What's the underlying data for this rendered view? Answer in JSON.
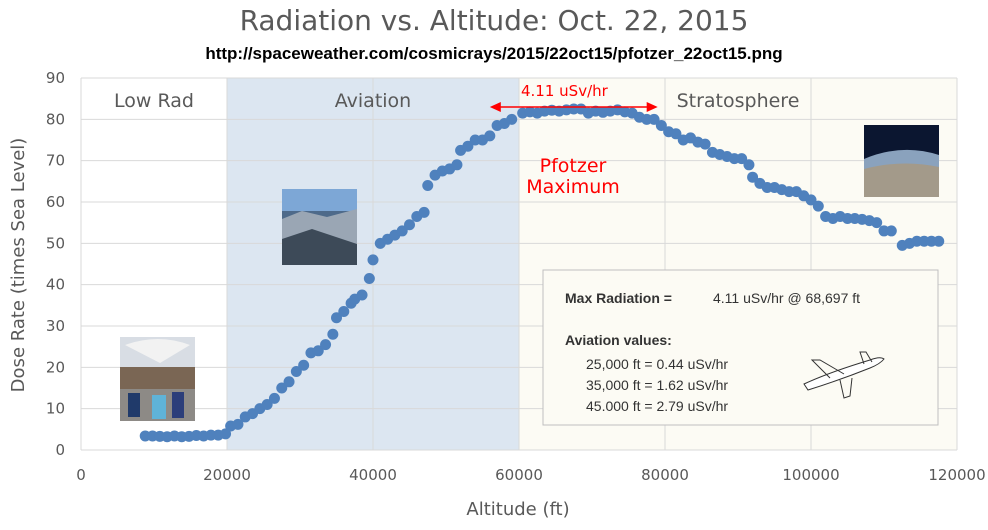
{
  "title": "Radiation vs. Altitude: Oct. 22, 2015",
  "subtitle": "http://spaceweather.com/cosmicrays/2015/22oct15/pfotzer_22oct15.png",
  "regions": [
    {
      "label": "Low Rad",
      "from": 0,
      "to": 20000,
      "color": "#ffffff"
    },
    {
      "label": "Aviation",
      "from": 20000,
      "to": 60000,
      "color": "#dce6f1"
    },
    {
      "label": "Stratosphere",
      "from": 60000,
      "to": 120000,
      "color": "#fcfbf4"
    }
  ],
  "annotations": {
    "peak_label": "4.11 uSv/hr",
    "pfotzer_line1": "Pfotzer",
    "pfotzer_line2": "Maximum",
    "arrow_from": 56000,
    "arrow_to": 79000,
    "arrow_y": 75
  },
  "info_box": {
    "max_label": "Max Radiation =",
    "max_value": "4.11 uSv/hr @ 68,697 ft",
    "aviation_heading": "Aviation values:",
    "lines": [
      "25,000 ft = 0.44 uSv/hr",
      "35,000 ft = 1.62 uSv/hr",
      "45.000 ft = 2.79 uSv/hr"
    ]
  },
  "photos": [
    "balloon-launch-photo",
    "aviation-altitude-photo",
    "stratosphere-photo",
    "airplane-sketch"
  ],
  "colors": {
    "points": "#4f81bd",
    "grid": "#d9d9d9",
    "annotation": "#ff0000"
  },
  "chart_data": {
    "type": "scatter",
    "xlabel": "Altitude (ft)",
    "ylabel": "Dose Rate (times Sea Level)",
    "xlim": [
      0,
      120000
    ],
    "ylim": [
      0,
      90
    ],
    "xticks": [
      0,
      20000,
      40000,
      60000,
      80000,
      100000,
      120000
    ],
    "yticks": [
      0,
      10,
      20,
      30,
      40,
      50,
      60,
      70,
      80,
      90
    ],
    "grid": true,
    "points": [
      [
        8800,
        3.4
      ],
      [
        9800,
        3.4
      ],
      [
        10800,
        3.3
      ],
      [
        11800,
        3.2
      ],
      [
        12800,
        3.4
      ],
      [
        13800,
        3.2
      ],
      [
        14800,
        3.3
      ],
      [
        15800,
        3.5
      ],
      [
        16800,
        3.4
      ],
      [
        17800,
        3.6
      ],
      [
        18800,
        3.6
      ],
      [
        19800,
        3.9
      ],
      [
        20500,
        5.8
      ],
      [
        21500,
        6.2
      ],
      [
        22500,
        8.0
      ],
      [
        23500,
        8.8
      ],
      [
        24500,
        10.0
      ],
      [
        25500,
        11.0
      ],
      [
        26500,
        12.5
      ],
      [
        27500,
        15.0
      ],
      [
        28500,
        16.5
      ],
      [
        29500,
        19.0
      ],
      [
        30500,
        20.5
      ],
      [
        31500,
        23.5
      ],
      [
        32500,
        24.0
      ],
      [
        33500,
        25.5
      ],
      [
        34500,
        28.0
      ],
      [
        35000,
        32.0
      ],
      [
        36000,
        33.5
      ],
      [
        37000,
        35.5
      ],
      [
        37500,
        36.5
      ],
      [
        38500,
        37.5
      ],
      [
        39500,
        41.5
      ],
      [
        40000,
        46.0
      ],
      [
        41000,
        50.0
      ],
      [
        42000,
        51.0
      ],
      [
        43000,
        52.0
      ],
      [
        44000,
        53.0
      ],
      [
        45000,
        54.5
      ],
      [
        46000,
        56.5
      ],
      [
        47000,
        57.5
      ],
      [
        47500,
        64.0
      ],
      [
        48500,
        66.5
      ],
      [
        49500,
        67.5
      ],
      [
        50500,
        68.0
      ],
      [
        51500,
        69.0
      ],
      [
        52000,
        72.5
      ],
      [
        53000,
        73.5
      ],
      [
        54000,
        75.0
      ],
      [
        55000,
        75.0
      ],
      [
        56000,
        76.0
      ],
      [
        57000,
        78.5
      ],
      [
        58000,
        79.0
      ],
      [
        59000,
        80.0
      ],
      [
        60500,
        81.5
      ],
      [
        61500,
        81.8
      ],
      [
        62500,
        81.5
      ],
      [
        63500,
        82.0
      ],
      [
        64500,
        82.2
      ],
      [
        65500,
        82.0
      ],
      [
        66500,
        82.3
      ],
      [
        67500,
        82.5
      ],
      [
        68500,
        82.5
      ],
      [
        69500,
        81.5
      ],
      [
        70500,
        82.0
      ],
      [
        71500,
        81.7
      ],
      [
        72500,
        82.0
      ],
      [
        73500,
        82.3
      ],
      [
        74500,
        81.8
      ],
      [
        75500,
        81.5
      ],
      [
        76500,
        80.5
      ],
      [
        77500,
        80.0
      ],
      [
        78500,
        80.0
      ],
      [
        79500,
        78.5
      ],
      [
        80500,
        77.0
      ],
      [
        81500,
        76.5
      ],
      [
        82500,
        75.0
      ],
      [
        83500,
        75.5
      ],
      [
        84500,
        74.5
      ],
      [
        85500,
        74.0
      ],
      [
        86500,
        72.0
      ],
      [
        87500,
        71.5
      ],
      [
        88500,
        71.0
      ],
      [
        89500,
        70.5
      ],
      [
        90500,
        70.5
      ],
      [
        91500,
        69.0
      ],
      [
        92000,
        66.0
      ],
      [
        93000,
        64.5
      ],
      [
        94000,
        63.5
      ],
      [
        95000,
        63.5
      ],
      [
        96000,
        63.0
      ],
      [
        97000,
        62.5
      ],
      [
        98000,
        62.5
      ],
      [
        99000,
        61.5
      ],
      [
        100000,
        60.5
      ],
      [
        101000,
        59.0
      ],
      [
        102000,
        56.5
      ],
      [
        103000,
        56.0
      ],
      [
        104000,
        56.5
      ],
      [
        105000,
        56.0
      ],
      [
        106000,
        56.0
      ],
      [
        107000,
        55.8
      ],
      [
        108000,
        55.5
      ],
      [
        109000,
        55.0
      ],
      [
        110000,
        53.0
      ],
      [
        111000,
        53.0
      ],
      [
        112500,
        49.5
      ],
      [
        113500,
        50.0
      ],
      [
        114500,
        50.5
      ],
      [
        115500,
        50.5
      ],
      [
        116500,
        50.5
      ],
      [
        117500,
        50.5
      ]
    ]
  }
}
